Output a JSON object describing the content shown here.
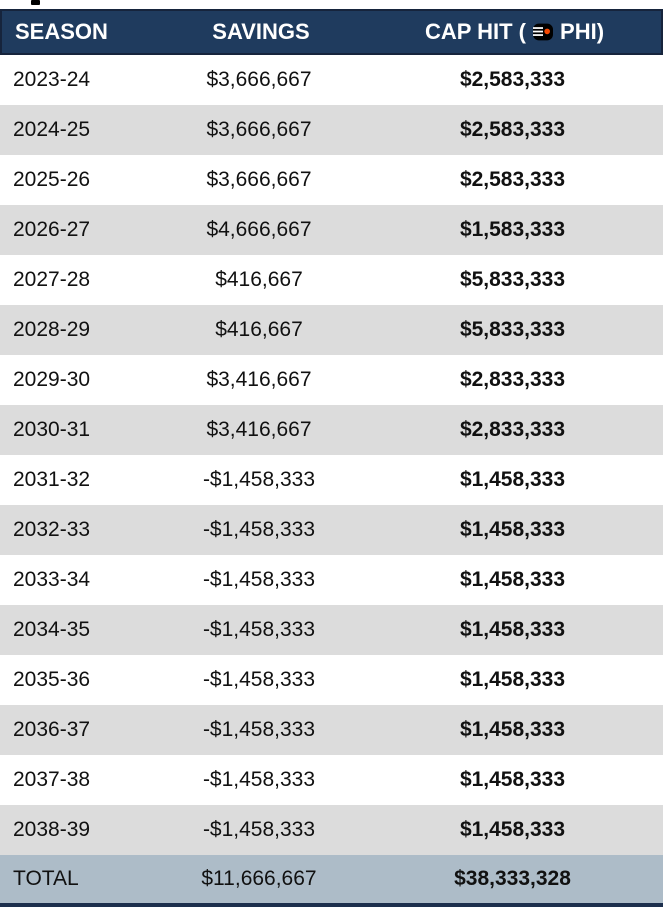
{
  "colors": {
    "header_bg": "#1f3b5e",
    "header_border": "#16243c",
    "row_alt_bg": "#dcdcdc",
    "total_bg": "#adbcc8",
    "bottom_bar": "#1c2f4d",
    "text": "#111111",
    "flyers_orange": "#f74902"
  },
  "table": {
    "headers": {
      "season": "SEASON",
      "savings": "SAVINGS",
      "cap_hit_label_start": "CAP HIT (",
      "cap_hit_team_logo": "philadelphia-flyers-logo",
      "cap_hit_label_end": "PHI)"
    },
    "rows": [
      {
        "season": "2023-24",
        "savings": "$3,666,667",
        "cap_hit": "$2,583,333"
      },
      {
        "season": "2024-25",
        "savings": "$3,666,667",
        "cap_hit": "$2,583,333"
      },
      {
        "season": "2025-26",
        "savings": "$3,666,667",
        "cap_hit": "$2,583,333"
      },
      {
        "season": "2026-27",
        "savings": "$4,666,667",
        "cap_hit": "$1,583,333"
      },
      {
        "season": "2027-28",
        "savings": "$416,667",
        "cap_hit": "$5,833,333"
      },
      {
        "season": "2028-29",
        "savings": "$416,667",
        "cap_hit": "$5,833,333"
      },
      {
        "season": "2029-30",
        "savings": "$3,416,667",
        "cap_hit": "$2,833,333"
      },
      {
        "season": "2030-31",
        "savings": "$3,416,667",
        "cap_hit": "$2,833,333"
      },
      {
        "season": "2031-32",
        "savings": "-$1,458,333",
        "cap_hit": "$1,458,333"
      },
      {
        "season": "2032-33",
        "savings": "-$1,458,333",
        "cap_hit": "$1,458,333"
      },
      {
        "season": "2033-34",
        "savings": "-$1,458,333",
        "cap_hit": "$1,458,333"
      },
      {
        "season": "2034-35",
        "savings": "-$1,458,333",
        "cap_hit": "$1,458,333"
      },
      {
        "season": "2035-36",
        "savings": "-$1,458,333",
        "cap_hit": "$1,458,333"
      },
      {
        "season": "2036-37",
        "savings": "-$1,458,333",
        "cap_hit": "$1,458,333"
      },
      {
        "season": "2037-38",
        "savings": "-$1,458,333",
        "cap_hit": "$1,458,333"
      },
      {
        "season": "2038-39",
        "savings": "-$1,458,333",
        "cap_hit": "$1,458,333"
      }
    ],
    "total": {
      "season": "TOTAL",
      "savings": "$11,666,667",
      "cap_hit": "$38,333,328"
    }
  }
}
